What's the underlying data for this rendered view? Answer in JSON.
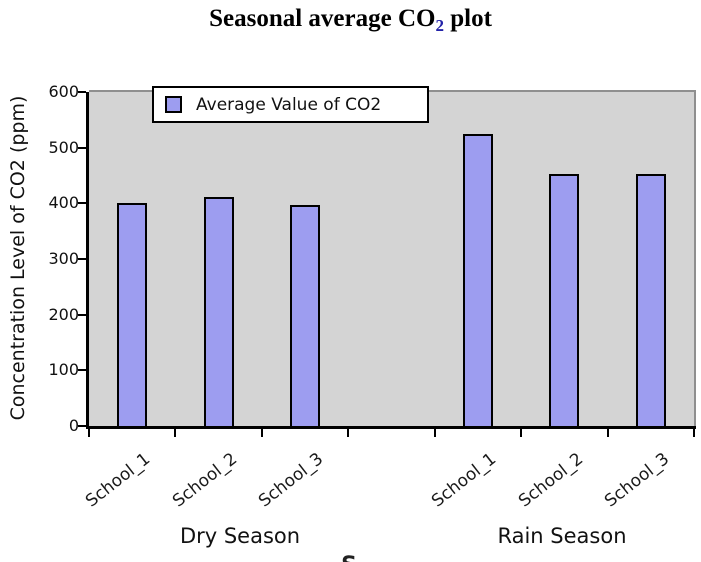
{
  "chart_data": {
    "type": "bar",
    "title": "Seasonal average CO2 plot",
    "title_parts": {
      "prefix": "Seasonal average CO",
      "subscript": "2",
      "suffix": " plot",
      "subscript_color": "#2222A8"
    },
    "ylabel": "Concentration Level of CO2 (ppm)",
    "xlabel_partial": "S",
    "legend": {
      "label": "Average Value of CO2",
      "position": "upper left"
    },
    "ylim": [
      0,
      600
    ],
    "yticks": [
      0,
      100,
      200,
      300,
      400,
      500,
      600
    ],
    "categories": [
      "School_1",
      "School_2",
      "School_3"
    ],
    "groups": [
      {
        "label": "Dry Season",
        "values": [
          400,
          412,
          397
        ]
      },
      {
        "label": "Rain Season",
        "values": [
          524,
          452,
          453
        ]
      }
    ],
    "grid": false,
    "xtick_rotation_deg": 38,
    "bar_color": "#9D9DF0",
    "bar_edge_color": "#000000",
    "plot_bg_color": "#D4D4D4",
    "figure_bg_color": "#FFFFFF"
  }
}
